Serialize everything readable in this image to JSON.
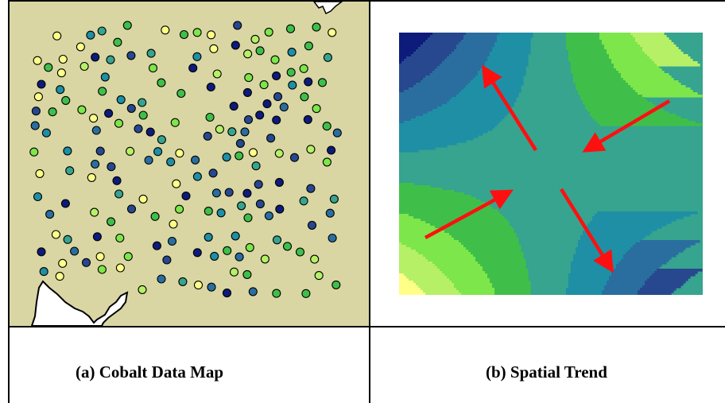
{
  "captions": {
    "left": "(a) Cobalt Data Map",
    "right": "(b) Spatial Trend"
  },
  "colors": {
    "map_background": "#d9d6a3",
    "water": "#ffffff",
    "border": "#000000",
    "arrow": "#ff1010",
    "scale": [
      "#0d1b7a",
      "#27488f",
      "#2a6ea0",
      "#1e8fa5",
      "#36a48e",
      "#3fbf4a",
      "#7de64a",
      "#b6f067",
      "#ffff88"
    ]
  },
  "legend": {
    "arrow_icon": "red-arrow"
  }
}
